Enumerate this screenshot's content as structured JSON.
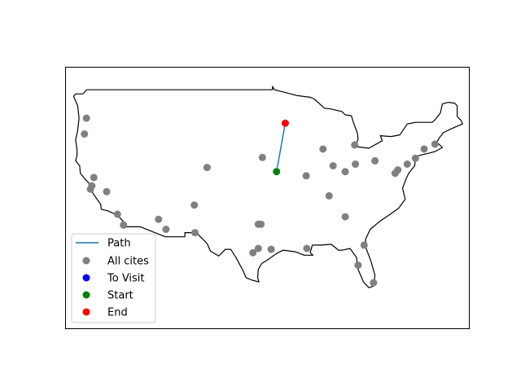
{
  "chart_data": {
    "type": "scatter",
    "title": "",
    "xlabel": "",
    "ylabel": "",
    "xlim": [
      -125.9,
      -66.0
    ],
    "ylim": [
      20.3,
      51.6
    ],
    "grid": false,
    "axis_ticks": false,
    "legend_placement": "lower-left",
    "colors": {
      "path": "#1f77b4",
      "all_cities": "#808080",
      "to_visit": "#0000ff",
      "start": "#008000",
      "end": "#ff0000",
      "border": "#000000"
    },
    "legend": [
      {
        "label": "Path",
        "marker": "line",
        "color": "#1f77b4"
      },
      {
        "label": "All cites",
        "marker": "dot",
        "color": "#808080"
      },
      {
        "label": "To Visit",
        "marker": "dot",
        "color": "#0000ff"
      },
      {
        "label": "Start",
        "marker": "dot",
        "color": "#008000"
      },
      {
        "label": "End",
        "marker": "dot",
        "color": "#ff0000"
      }
    ],
    "series": [
      {
        "name": "All cites",
        "points": [
          [
            -122.8,
            45.5
          ],
          [
            -123.1,
            43.6
          ],
          [
            -121.7,
            38.4
          ],
          [
            -122.0,
            37.4
          ],
          [
            -122.2,
            37.0
          ],
          [
            -118.2,
            34.0
          ],
          [
            -117.3,
            32.7
          ],
          [
            -112.1,
            33.4
          ],
          [
            -111.0,
            32.2
          ],
          [
            -119.8,
            36.7
          ],
          [
            -106.8,
            35.1
          ],
          [
            -106.7,
            31.8
          ],
          [
            -104.9,
            39.6
          ],
          [
            -96.7,
            40.8
          ],
          [
            -97.3,
            32.8
          ],
          [
            -96.9,
            32.8
          ],
          [
            -97.3,
            29.9
          ],
          [
            -98.1,
            29.4
          ],
          [
            -95.4,
            29.8
          ],
          [
            -90.2,
            38.6
          ],
          [
            -87.7,
            41.8
          ],
          [
            -86.2,
            39.8
          ],
          [
            -84.4,
            39.1
          ],
          [
            -83.0,
            42.3
          ],
          [
            -82.9,
            40.0
          ],
          [
            -80.0,
            40.4
          ],
          [
            -86.8,
            36.2
          ],
          [
            -84.4,
            33.7
          ],
          [
            -81.6,
            30.3
          ],
          [
            -82.5,
            27.9
          ],
          [
            -80.2,
            25.8
          ],
          [
            -90.1,
            29.9
          ],
          [
            -75.2,
            40.0
          ],
          [
            -74.0,
            40.7
          ],
          [
            -77.0,
            38.9
          ],
          [
            -76.6,
            39.3
          ],
          [
            -71.1,
            42.4
          ],
          [
            -72.7,
            41.8
          ]
        ]
      },
      {
        "name": "To Visit",
        "points": []
      },
      {
        "name": "Start",
        "points": [
          [
            -94.6,
            39.1
          ]
        ]
      },
      {
        "name": "End",
        "points": [
          [
            -93.3,
            44.9
          ]
        ]
      },
      {
        "name": "Path",
        "points": [
          [
            -94.6,
            39.1
          ],
          [
            -93.3,
            44.9
          ]
        ]
      }
    ],
    "border": [
      [
        -123.3,
        48.4
      ],
      [
        -122.8,
        48.9
      ],
      [
        -95.2,
        48.9
      ],
      [
        -95.2,
        49.3
      ],
      [
        -94.9,
        48.9
      ],
      [
        -93.4,
        48.6
      ],
      [
        -91.5,
        48.2
      ],
      [
        -89.6,
        48.0
      ],
      [
        -89.0,
        47.8
      ],
      [
        -87.5,
        46.7
      ],
      [
        -86.5,
        46.6
      ],
      [
        -84.9,
        46.3
      ],
      [
        -84.4,
        45.9
      ],
      [
        -83.5,
        45.8
      ],
      [
        -83.2,
        45.0
      ],
      [
        -82.6,
        43.7
      ],
      [
        -82.5,
        43.0
      ],
      [
        -82.9,
        42.1
      ],
      [
        -80.9,
        41.9
      ],
      [
        -78.9,
        42.8
      ],
      [
        -79.2,
        43.4
      ],
      [
        -77.6,
        43.3
      ],
      [
        -76.3,
        43.5
      ],
      [
        -75.2,
        44.8
      ],
      [
        -74.0,
        45.0
      ],
      [
        -71.5,
        45.0
      ],
      [
        -71.1,
        45.3
      ],
      [
        -70.3,
        46.1
      ],
      [
        -70.0,
        47.2
      ],
      [
        -69.1,
        47.4
      ],
      [
        -68.2,
        47.3
      ],
      [
        -67.8,
        47.0
      ],
      [
        -67.8,
        45.7
      ],
      [
        -67.2,
        45.2
      ],
      [
        -67.0,
        44.8
      ],
      [
        -68.2,
        44.4
      ],
      [
        -69.8,
        43.8
      ],
      [
        -70.5,
        43.1
      ],
      [
        -70.8,
        42.6
      ],
      [
        -70.0,
        42.0
      ],
      [
        -71.1,
        41.5
      ],
      [
        -72.0,
        41.3
      ],
      [
        -73.6,
        41.0
      ],
      [
        -74.0,
        40.6
      ],
      [
        -74.1,
        39.8
      ],
      [
        -75.0,
        38.9
      ],
      [
        -75.4,
        38.2
      ],
      [
        -75.9,
        37.1
      ],
      [
        -75.5,
        35.8
      ],
      [
        -76.5,
        34.7
      ],
      [
        -77.9,
        33.9
      ],
      [
        -79.2,
        33.2
      ],
      [
        -80.7,
        32.2
      ],
      [
        -81.4,
        31.0
      ],
      [
        -81.3,
        29.9
      ],
      [
        -80.6,
        28.4
      ],
      [
        -80.0,
        26.7
      ],
      [
        -80.2,
        25.4
      ],
      [
        -80.9,
        25.2
      ],
      [
        -81.7,
        25.9
      ],
      [
        -82.6,
        27.6
      ],
      [
        -82.7,
        28.8
      ],
      [
        -83.7,
        29.9
      ],
      [
        -84.8,
        29.7
      ],
      [
        -85.4,
        29.7
      ],
      [
        -86.5,
        30.4
      ],
      [
        -88.0,
        30.3
      ],
      [
        -89.3,
        30.3
      ],
      [
        -89.6,
        29.4
      ],
      [
        -89.2,
        29.1
      ],
      [
        -90.5,
        29.1
      ],
      [
        -91.8,
        29.5
      ],
      [
        -93.6,
        29.7
      ],
      [
        -94.6,
        29.3
      ],
      [
        -95.8,
        28.6
      ],
      [
        -96.8,
        28.1
      ],
      [
        -97.3,
        27.4
      ],
      [
        -97.4,
        26.4
      ],
      [
        -97.2,
        25.9
      ],
      [
        -98.2,
        26.1
      ],
      [
        -99.1,
        26.4
      ],
      [
        -99.6,
        27.3
      ],
      [
        -100.6,
        28.8
      ],
      [
        -101.4,
        29.8
      ],
      [
        -102.2,
        29.8
      ],
      [
        -102.8,
        29.3
      ],
      [
        -103.2,
        29.0
      ],
      [
        -104.4,
        29.6
      ],
      [
        -104.9,
        30.5
      ],
      [
        -106.5,
        31.8
      ],
      [
        -108.2,
        31.8
      ],
      [
        -108.2,
        31.3
      ],
      [
        -111.1,
        31.3
      ],
      [
        -114.8,
        32.5
      ],
      [
        -117.1,
        32.5
      ],
      [
        -117.3,
        33.1
      ],
      [
        -118.1,
        33.8
      ],
      [
        -118.5,
        34.0
      ],
      [
        -119.6,
        34.4
      ],
      [
        -120.6,
        34.6
      ],
      [
        -120.7,
        35.2
      ],
      [
        -121.4,
        36.0
      ],
      [
        -121.9,
        36.6
      ],
      [
        -122.1,
        37.2
      ],
      [
        -122.5,
        37.8
      ],
      [
        -123.0,
        38.2
      ],
      [
        -123.7,
        38.9
      ],
      [
        -123.8,
        39.8
      ],
      [
        -124.4,
        40.4
      ],
      [
        -124.2,
        41.0
      ],
      [
        -124.2,
        41.8
      ],
      [
        -124.4,
        42.9
      ],
      [
        -124.1,
        44.0
      ],
      [
        -123.9,
        45.5
      ],
      [
        -124.0,
        46.3
      ],
      [
        -124.1,
        47.0
      ],
      [
        -124.7,
        48.1
      ],
      [
        -124.4,
        48.4
      ],
      [
        -123.3,
        48.4
      ]
    ]
  }
}
